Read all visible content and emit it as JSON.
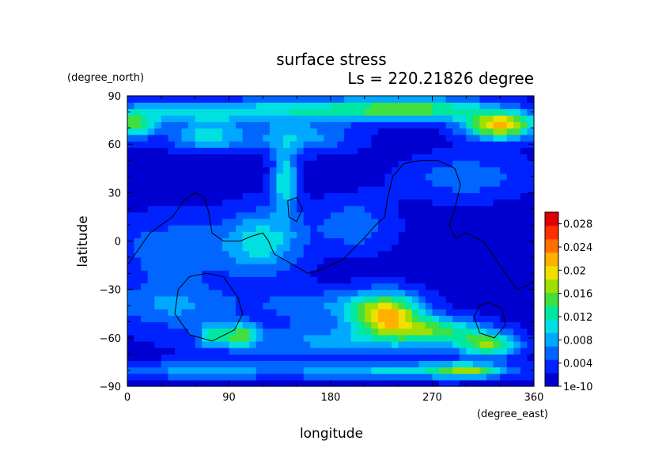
{
  "chart_data": {
    "type": "heatmap",
    "title": "surface stress",
    "subtitle": "Ls = 220.21826 degree",
    "xlabel": "longitude",
    "ylabel": "latitude",
    "x_unit": "(degree_east)",
    "y_unit": "(degree_north)",
    "xlim": [
      0,
      360
    ],
    "ylim": [
      -90,
      90
    ],
    "x_ticks": [
      0,
      90,
      180,
      270,
      360
    ],
    "y_ticks": [
      -90,
      -60,
      -30,
      0,
      30,
      60,
      90
    ],
    "colorbar": {
      "min": 1e-10,
      "max": 0.03,
      "labels": [
        "1e-10",
        "0.004",
        "0.008",
        "0.012",
        "0.016",
        "0.02",
        "0.024",
        "0.028"
      ],
      "label_values": [
        0,
        0.004,
        0.008,
        0.012,
        0.016,
        0.02,
        0.024,
        0.028
      ],
      "colors": [
        "#0000d0",
        "#0022ff",
        "#0066ff",
        "#00a8ff",
        "#00e0e0",
        "#00e8a0",
        "#40e040",
        "#a0e000",
        "#f0e000",
        "#ffb000",
        "#ff7000",
        "#ff3000",
        "#e00000"
      ]
    },
    "blobs": [
      {
        "lon": 230,
        "lat": -45,
        "slon": 22,
        "slat": 9,
        "amp": 0.019
      },
      {
        "lon": 275,
        "lat": -55,
        "slon": 30,
        "slat": 6,
        "amp": 0.011
      },
      {
        "lon": 320,
        "lat": -64,
        "slon": 18,
        "slat": 5,
        "amp": 0.013
      },
      {
        "lon": 330,
        "lat": 72,
        "slon": 22,
        "slat": 6,
        "amp": 0.02
      },
      {
        "lon": 260,
        "lat": 82,
        "slon": 45,
        "slat": 5,
        "amp": 0.011
      },
      {
        "lon": 180,
        "lat": 82,
        "slon": 60,
        "slat": 5,
        "amp": 0.008
      },
      {
        "lon": 60,
        "lat": 80,
        "slon": 60,
        "slat": 5,
        "amp": 0.008
      },
      {
        "lon": 5,
        "lat": 72,
        "slon": 14,
        "slat": 6,
        "amp": 0.012
      },
      {
        "lon": 70,
        "lat": 65,
        "slon": 22,
        "slat": 6,
        "amp": 0.009
      },
      {
        "lon": 150,
        "lat": 65,
        "slon": 35,
        "slat": 7,
        "amp": 0.007
      },
      {
        "lon": 140,
        "lat": 38,
        "slon": 8,
        "slat": 14,
        "amp": 0.01
      },
      {
        "lon": 120,
        "lat": 0,
        "slon": 25,
        "slat": 14,
        "amp": 0.009
      },
      {
        "lon": 40,
        "lat": -5,
        "slon": 40,
        "slat": 15,
        "amp": 0.005
      },
      {
        "lon": 200,
        "lat": 10,
        "slon": 25,
        "slat": 12,
        "amp": 0.005
      },
      {
        "lon": 300,
        "lat": 40,
        "slon": 40,
        "slat": 10,
        "amp": 0.005
      },
      {
        "lon": 100,
        "lat": -58,
        "slon": 10,
        "slat": 5,
        "amp": 0.012
      },
      {
        "lon": 75,
        "lat": -58,
        "slon": 8,
        "slat": 5,
        "amp": 0.009
      },
      {
        "lon": 40,
        "lat": -40,
        "slon": 40,
        "slat": 10,
        "amp": 0.006
      },
      {
        "lon": 180,
        "lat": -62,
        "slon": 80,
        "slat": 7,
        "amp": 0.006
      },
      {
        "lon": 170,
        "lat": -40,
        "slon": 40,
        "slat": 8,
        "amp": 0.005
      },
      {
        "lon": 240,
        "lat": -80,
        "slon": 70,
        "slat": 4,
        "amp": 0.008
      },
      {
        "lon": 60,
        "lat": -80,
        "slon": 60,
        "slat": 4,
        "amp": 0.006
      },
      {
        "lon": 300,
        "lat": -80,
        "slon": 20,
        "slat": 3,
        "amp": 0.011
      }
    ],
    "contours": [
      [
        [
          0,
          -15
        ],
        [
          10,
          -5
        ],
        [
          20,
          5
        ],
        [
          30,
          10
        ],
        [
          40,
          15
        ],
        [
          50,
          25
        ],
        [
          60,
          30
        ],
        [
          68,
          27
        ],
        [
          72,
          18
        ],
        [
          75,
          5
        ],
        [
          85,
          0
        ],
        [
          100,
          0
        ],
        [
          110,
          3
        ],
        [
          120,
          5
        ],
        [
          125,
          0
        ],
        [
          130,
          -8
        ],
        [
          140,
          -12
        ],
        [
          150,
          -16
        ],
        [
          160,
          -20
        ],
        [
          170,
          -18
        ],
        [
          180,
          -15
        ],
        [
          190,
          -12
        ],
        [
          200,
          -5
        ],
        [
          210,
          2
        ],
        [
          220,
          10
        ],
        [
          228,
          15
        ],
        [
          230,
          25
        ],
        [
          235,
          40
        ],
        [
          245,
          48
        ],
        [
          260,
          50
        ],
        [
          275,
          50
        ],
        [
          290,
          45
        ],
        [
          295,
          35
        ],
        [
          290,
          20
        ],
        [
          285,
          10
        ],
        [
          290,
          2
        ],
        [
          300,
          5
        ],
        [
          315,
          0
        ],
        [
          325,
          -10
        ],
        [
          335,
          -20
        ],
        [
          345,
          -30
        ],
        [
          355,
          -27
        ],
        [
          360,
          -25
        ]
      ],
      [
        [
          70,
          -20
        ],
        [
          85,
          -22
        ],
        [
          98,
          -35
        ],
        [
          102,
          -45
        ],
        [
          95,
          -55
        ],
        [
          75,
          -62
        ],
        [
          55,
          -58
        ],
        [
          42,
          -45
        ],
        [
          45,
          -30
        ],
        [
          55,
          -22
        ],
        [
          70,
          -20
        ]
      ],
      [
        [
          142,
          25
        ],
        [
          150,
          27
        ],
        [
          155,
          20
        ],
        [
          150,
          12
        ],
        [
          143,
          15
        ],
        [
          142,
          25
        ]
      ],
      [
        [
          320,
          -38
        ],
        [
          332,
          -42
        ],
        [
          335,
          -52
        ],
        [
          325,
          -60
        ],
        [
          312,
          -57
        ],
        [
          307,
          -47
        ],
        [
          312,
          -40
        ],
        [
          320,
          -38
        ]
      ]
    ]
  }
}
